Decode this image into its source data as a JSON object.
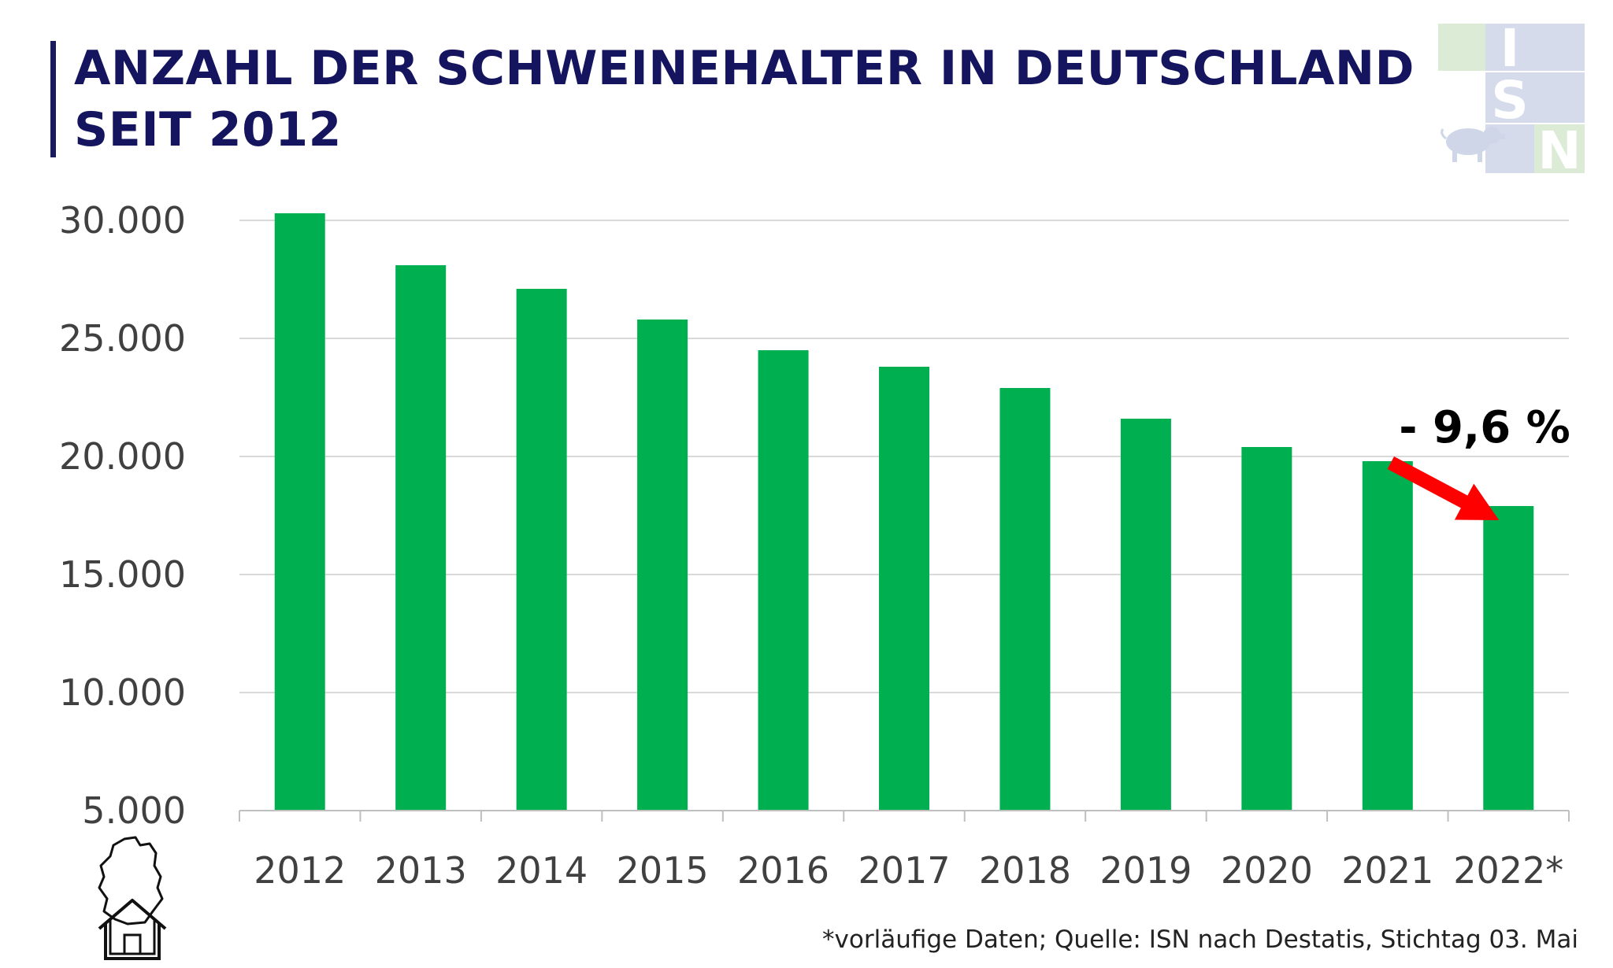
{
  "header": {
    "title_line1": "ANZAHL DER SCHWEINEHALTER IN DEUTSCHLAND",
    "title_line2": "SEIT 2012"
  },
  "logo": {
    "letters": [
      "I",
      "S",
      "N"
    ],
    "icon": "pig-icon"
  },
  "footnote": "*vorläufige Daten; Quelle: ISN nach Destatis, Stichtag 03. Mai",
  "colors": {
    "bar": "#00b050",
    "grid": "#d9d9d9",
    "arrow": "#ff0000",
    "title": "#14145f"
  },
  "chart_data": {
    "type": "bar",
    "categories": [
      "2012",
      "2013",
      "2014",
      "2015",
      "2016",
      "2017",
      "2018",
      "2019",
      "2020",
      "2021",
      "2022*"
    ],
    "values": [
      30300,
      28100,
      27100,
      25800,
      24500,
      23800,
      22900,
      21600,
      20400,
      19800,
      17900
    ],
    "title": "",
    "xlabel": "",
    "ylabel": "",
    "ylim": [
      5000,
      30000
    ],
    "yticks": [
      "5.000",
      "10.000",
      "15.000",
      "20.000",
      "25.000",
      "30.000"
    ],
    "ytick_values": [
      5000,
      10000,
      15000,
      20000,
      25000,
      30000
    ],
    "grid": true,
    "annotation": {
      "text": "- 9,6 %",
      "from_category": "2021",
      "to_category": "2022*"
    }
  }
}
